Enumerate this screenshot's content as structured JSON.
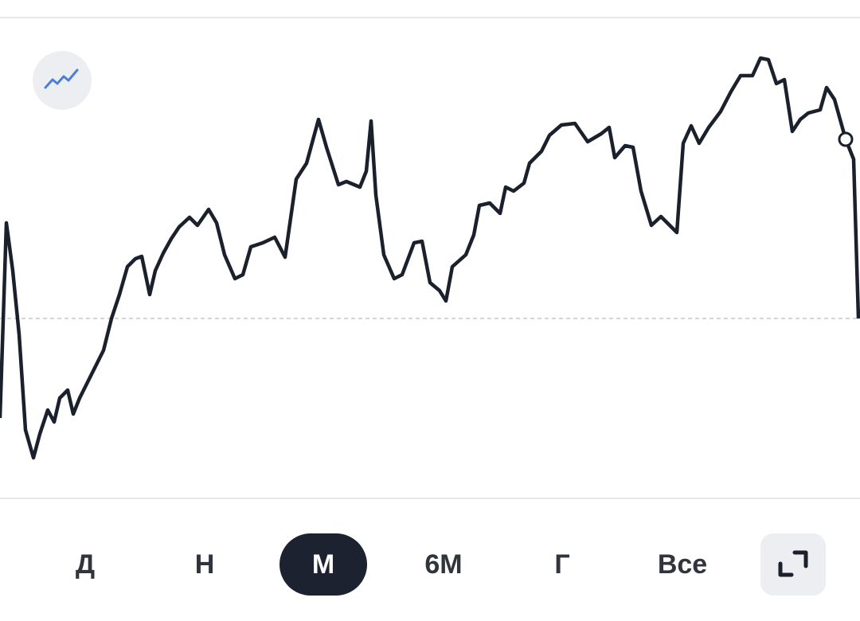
{
  "chart_data": {
    "type": "line",
    "color": "#1a202c",
    "xlim": [
      0,
      1080
    ],
    "ylim": [
      0,
      604
    ],
    "reference_value": 226,
    "x": [
      0,
      8,
      16,
      24,
      32,
      42,
      50,
      60,
      68,
      75,
      85,
      92,
      100,
      110,
      120,
      130,
      140,
      150,
      160,
      170,
      178,
      188,
      195,
      205,
      215,
      225,
      238,
      248,
      262,
      272,
      282,
      295,
      305,
      315,
      330,
      345,
      358,
      372,
      385,
      400,
      410,
      425,
      435,
      452,
      460,
      466,
      472,
      482,
      495,
      505,
      520,
      530,
      540,
      552,
      560,
      568,
      585,
      595,
      602,
      615,
      628,
      635,
      645,
      658,
      665,
      680,
      690,
      705,
      722,
      738,
      755,
      765,
      772,
      785,
      795,
      805,
      818,
      830,
      850,
      858,
      868,
      878,
      890,
      905,
      918,
      930,
      945,
      955,
      965,
      975,
      985,
      995,
      1005,
      1015,
      1030,
      1038,
      1048,
      1062,
      1072,
      1078
    ],
    "values": [
      101,
      346,
      286,
      206,
      86,
      51,
      81,
      111,
      96,
      126,
      136,
      106,
      126,
      146,
      166,
      186,
      226,
      256,
      291,
      301,
      304,
      256,
      286,
      308,
      326,
      341,
      353,
      343,
      363,
      346,
      306,
      276,
      281,
      316,
      321,
      328,
      303,
      401,
      421,
      476,
      441,
      394,
      398,
      391,
      411,
      474,
      381,
      306,
      276,
      281,
      321,
      323,
      271,
      261,
      248,
      291,
      306,
      331,
      368,
      371,
      358,
      391,
      386,
      396,
      421,
      436,
      456,
      469,
      471,
      448,
      458,
      466,
      428,
      443,
      441,
      386,
      343,
      354,
      334,
      446,
      468,
      446,
      466,
      486,
      511,
      531,
      531,
      553,
      551,
      521,
      526,
      461,
      476,
      484,
      488,
      516,
      501,
      451,
      426,
      226
    ],
    "periods": [
      "Д",
      "Н",
      "М",
      "6М",
      "Г",
      "Все"
    ],
    "active_period": "М"
  }
}
